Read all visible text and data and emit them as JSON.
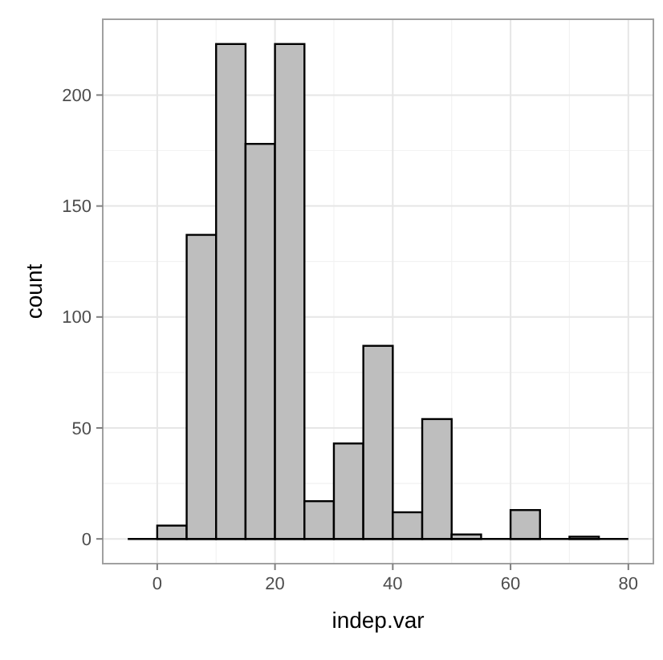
{
  "chart_data": {
    "type": "histogram",
    "xlabel": "indep.var",
    "ylabel": "count",
    "bins": [
      -5,
      0,
      5,
      10,
      15,
      20,
      25,
      30,
      35,
      40,
      45,
      50,
      55,
      60,
      65,
      70,
      75,
      80
    ],
    "values": [
      0,
      6,
      137,
      223,
      178,
      223,
      17,
      43,
      87,
      12,
      54,
      2,
      0,
      13,
      0,
      1,
      0
    ],
    "color": "#bebebe",
    "xlim": [
      -9.25,
      84.25
    ],
    "xticks": [
      0,
      20,
      40,
      60,
      80
    ],
    "ylim": [
      -11.15,
      234.15
    ],
    "yticks": [
      0,
      50,
      100,
      150,
      200
    ],
    "grid": true
  }
}
